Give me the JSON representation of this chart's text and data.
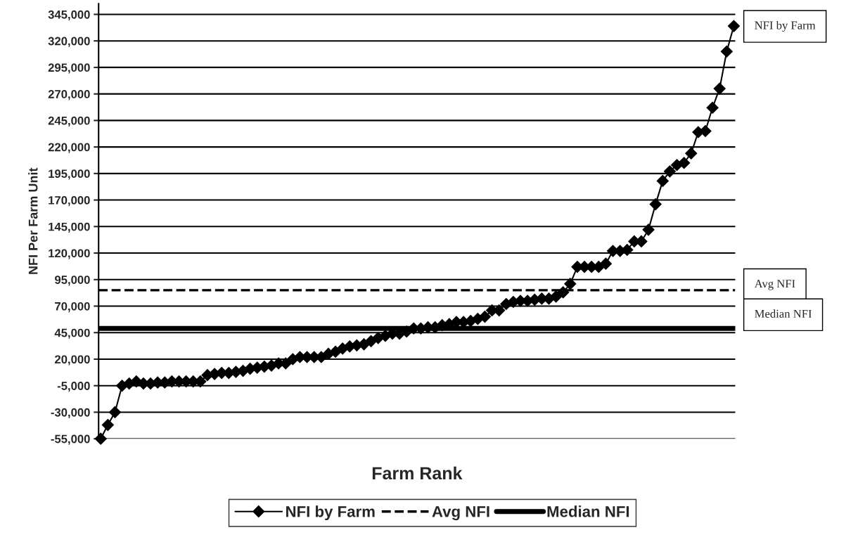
{
  "chart_data": {
    "type": "line",
    "xlabel": "Farm Rank",
    "ylabel": "NFI Per Farm Unit",
    "categories": [
      null,
      null,
      null,
      null,
      null,
      null,
      null,
      null,
      null,
      null,
      null,
      null,
      null,
      null,
      null,
      null,
      null,
      null,
      null,
      null,
      null,
      null,
      null,
      null,
      null,
      null,
      null,
      null,
      null,
      null,
      null,
      null,
      null,
      null,
      null,
      null,
      null,
      null,
      null,
      null,
      null,
      null,
      null,
      null,
      null,
      null,
      null,
      null,
      null,
      null,
      null,
      null,
      null,
      null,
      null,
      null,
      null,
      null,
      null,
      null,
      null,
      null,
      null,
      null,
      null,
      null,
      null,
      null,
      null,
      null,
      null,
      null,
      null,
      null,
      null,
      null,
      null,
      null,
      null,
      null,
      null,
      null,
      null,
      null,
      null,
      null,
      null,
      null,
      null,
      null
    ],
    "series": [
      {
        "name": "NFI by Farm",
        "color": "#000000",
        "values": [
          -55000,
          -42000,
          -30000,
          -5000,
          -3000,
          -1000,
          -3000,
          -3000,
          -2000,
          -2000,
          -1000,
          -1000,
          -1000,
          -1000,
          -1000,
          5000,
          6000,
          7000,
          7000,
          8000,
          9000,
          11000,
          12000,
          13000,
          14000,
          16000,
          16000,
          20000,
          22000,
          22000,
          22000,
          22000,
          25000,
          27000,
          30000,
          32000,
          33000,
          34000,
          37000,
          40000,
          42000,
          44000,
          44000,
          46000,
          49000,
          49000,
          50000,
          50000,
          52000,
          53000,
          55000,
          55000,
          56000,
          58000,
          60000,
          66000,
          66000,
          72000,
          74000,
          75000,
          75000,
          76000,
          77000,
          77000,
          79000,
          83000,
          91000,
          107000,
          107000,
          107000,
          107000,
          110000,
          122000,
          122000,
          123000,
          131000,
          131000,
          142000,
          166000,
          188000,
          197000,
          203000,
          205000,
          214000,
          234000,
          235000,
          257000,
          275000,
          310000,
          334000
        ]
      }
    ],
    "ref_lines": [
      {
        "axis": "y",
        "value": 85000,
        "label": "Avg NFI",
        "color": "#000000",
        "line_style": "dashed"
      },
      {
        "axis": "y",
        "value": 49000,
        "label": "Median NFI",
        "color": "#000000",
        "line_style": "solid"
      }
    ],
    "annotations": [
      "NFI by Farm",
      "Avg NFI",
      "Median NFI"
    ],
    "ylim": [
      -55000,
      355000
    ],
    "yticks": [
      {
        "value": -55000,
        "label": "-55,000"
      },
      {
        "value": -30000,
        "label": "-30,000"
      },
      {
        "value": -5000,
        "label": "-5,000"
      },
      {
        "value": 20000,
        "label": "20,000"
      },
      {
        "value": 45000,
        "label": "45,000"
      },
      {
        "value": 70000,
        "label": "70,000"
      },
      {
        "value": 95000,
        "label": "95,000"
      },
      {
        "value": 120000,
        "label": "120,000"
      },
      {
        "value": 145000,
        "label": "145,000"
      },
      {
        "value": 170000,
        "label": "170,000"
      },
      {
        "value": 195000,
        "label": "195,000"
      },
      {
        "value": 220000,
        "label": "220,000"
      },
      {
        "value": 245000,
        "label": "245,000"
      },
      {
        "value": 270000,
        "label": "270,000"
      },
      {
        "value": 295000,
        "label": "295,000"
      },
      {
        "value": 320000,
        "label": "320,000"
      },
      {
        "value": 345000,
        "label": "345,000"
      }
    ],
    "grid": "y",
    "legend": "bottom",
    "marker": "diamond",
    "line_style": "solid"
  }
}
